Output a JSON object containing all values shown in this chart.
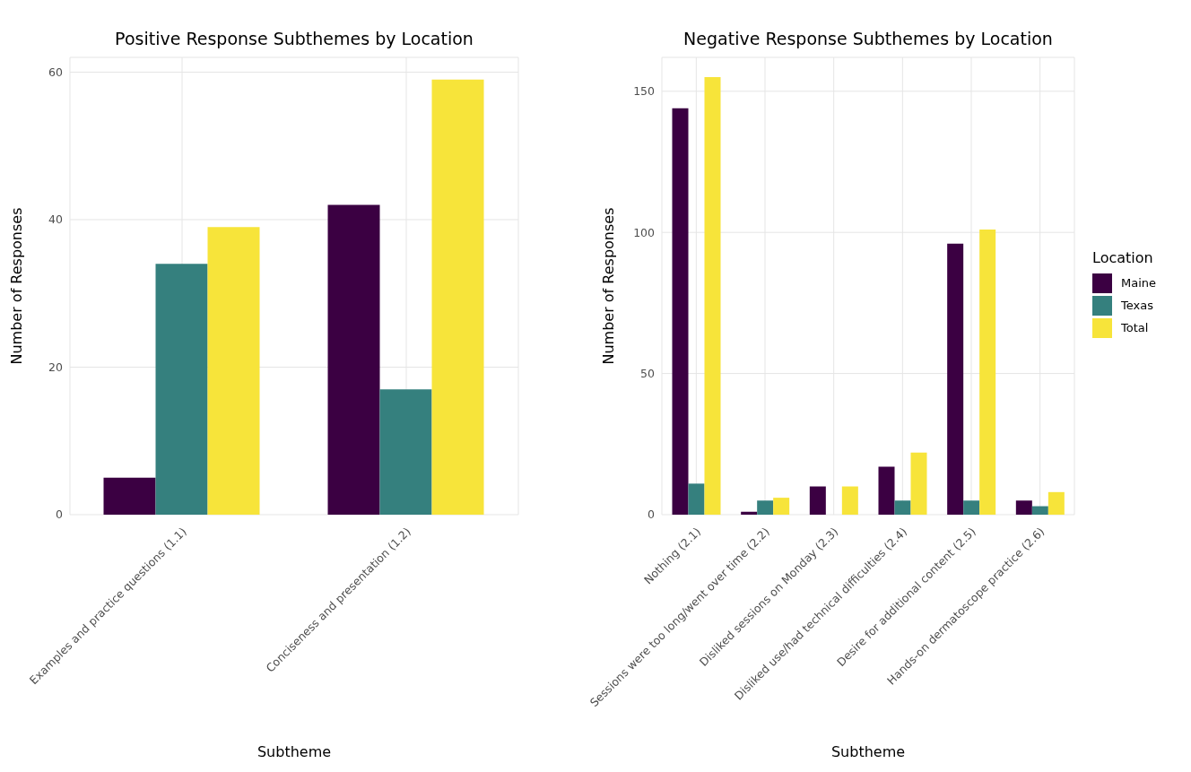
{
  "chart_data": [
    {
      "type": "bar",
      "title": "Positive Response Subthemes by Location",
      "xlabel": "Subtheme",
      "ylabel": "Number of Responses",
      "categories": [
        "Examples and practice questions (1.1)",
        "Conciseness and presentation (1.2)"
      ],
      "series": [
        {
          "color": "#3b0042",
          "values": [
            5,
            42
          ]
        },
        {
          "color": "#35807e",
          "values": [
            34,
            17
          ]
        },
        {
          "color": "#f7e43a",
          "values": [
            39,
            59
          ]
        }
      ],
      "ylim": [
        0,
        62
      ],
      "yticks": [
        0,
        20,
        40,
        60
      ],
      "grid": true,
      "legend": false
    },
    {
      "type": "bar",
      "title": "Negative Response Subthemes by Location",
      "xlabel": "Subtheme",
      "ylabel": "Number of Responses",
      "legend_title": "Location",
      "categories": [
        "Nothing (2.1)",
        "Sessions were too long/went over time (2.2)",
        "Disliked sessions on Monday (2.3)",
        "Disliked use/had technical difficulties (2.4)",
        "Desire for additional content (2.5)",
        "Hands-on dermatoscope practice (2.6)"
      ],
      "series": [
        {
          "name": "Maine",
          "color": "#3b0042",
          "values": [
            144,
            1,
            10,
            17,
            96,
            5
          ]
        },
        {
          "name": "Texas",
          "color": "#35807e",
          "values": [
            11,
            5,
            0,
            5,
            5,
            3
          ]
        },
        {
          "name": "Total",
          "color": "#f7e43a",
          "values": [
            155,
            6,
            10,
            22,
            101,
            8
          ]
        }
      ],
      "ylim": [
        0,
        162
      ],
      "yticks": [
        0,
        50,
        100,
        150
      ],
      "grid": true,
      "legend": "right"
    }
  ]
}
